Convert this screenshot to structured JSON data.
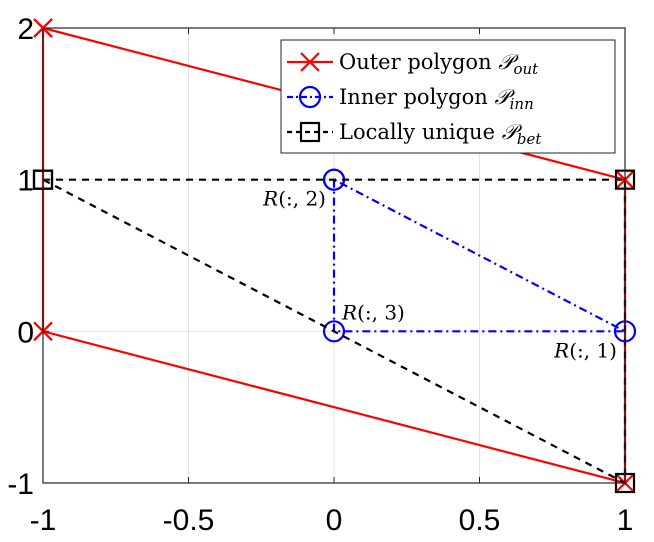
{
  "chart_data": {
    "type": "line",
    "title": "",
    "xlabel": "",
    "ylabel": "",
    "xlim": [
      -1,
      1
    ],
    "ylim": [
      -1,
      2
    ],
    "xticks": [
      -1,
      -0.5,
      0,
      0.5,
      1
    ],
    "yticks": [
      -1,
      0,
      1,
      2
    ],
    "xtick_labels": [
      "-1",
      "-0.5",
      "0",
      "0.5",
      "1"
    ],
    "ytick_labels": [
      "-1",
      "0",
      "1",
      "2"
    ],
    "grid": true,
    "legend_position": "top-right",
    "series": [
      {
        "name": "Outer polygon",
        "name_symbol": "𝒫",
        "name_subscript": "out",
        "color": "#ff0000",
        "line_style": "solid",
        "marker": "x",
        "x": [
          -1,
          -1,
          1,
          1,
          -1
        ],
        "y": [
          2,
          0,
          -1,
          1,
          2
        ]
      },
      {
        "name": "Inner polygon",
        "name_symbol": "𝒫",
        "name_subscript": "inn",
        "color": "#0000ff",
        "line_style": "dash-dot",
        "marker": "circle",
        "x": [
          0,
          0,
          1,
          0
        ],
        "y": [
          1,
          0,
          0,
          1
        ]
      },
      {
        "name": "Locally unique",
        "name_symbol": "𝒫",
        "name_subscript": "bet",
        "color": "#000000",
        "line_style": "dashed",
        "marker": "square",
        "x": [
          -1,
          1,
          1,
          -1
        ],
        "y": [
          1,
          1,
          -1,
          1
        ]
      }
    ],
    "annotations": [
      {
        "text_pre": "R",
        "text_post": "(:, 2)",
        "x": 0,
        "y": 1,
        "anchor": "below-left"
      },
      {
        "text_pre": "R",
        "text_post": "(:, 3)",
        "x": 0,
        "y": 0,
        "anchor": "above-right"
      },
      {
        "text_pre": "R",
        "text_post": "(:, 1)",
        "x": 1,
        "y": 0,
        "anchor": "below-left"
      }
    ]
  }
}
